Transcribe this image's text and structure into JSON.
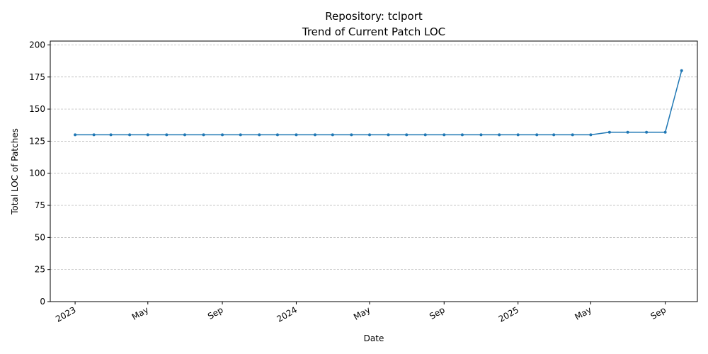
{
  "chart_data": {
    "type": "line",
    "title": "Repository: tclport",
    "subtitle": "Trend of Current Patch LOC",
    "xlabel": "Date",
    "ylabel": "Total LOC of Patches",
    "ylim": [
      0,
      203
    ],
    "xlim": [
      "2022-11-21",
      "2025-10-24"
    ],
    "yticks": [
      0,
      25,
      50,
      75,
      100,
      125,
      150,
      175,
      200
    ],
    "xticks": [
      {
        "date": "2023-01-01",
        "label": "2023"
      },
      {
        "date": "2023-05-01",
        "label": "May"
      },
      {
        "date": "2023-09-01",
        "label": "Sep"
      },
      {
        "date": "2024-01-01",
        "label": "2024"
      },
      {
        "date": "2024-05-01",
        "label": "May"
      },
      {
        "date": "2024-09-01",
        "label": "Sep"
      },
      {
        "date": "2025-01-01",
        "label": "2025"
      },
      {
        "date": "2025-05-01",
        "label": "May"
      },
      {
        "date": "2025-09-01",
        "label": "Sep"
      }
    ],
    "grid": "y-dashed",
    "color": "#1f77b4",
    "series": [
      {
        "x": [
          "2023-01-01",
          "2023-02-01",
          "2023-03-01",
          "2023-04-01",
          "2023-05-01",
          "2023-06-01",
          "2023-07-01",
          "2023-08-01",
          "2023-09-01",
          "2023-10-01",
          "2023-11-01",
          "2023-12-01",
          "2024-01-01",
          "2024-02-01",
          "2024-03-01",
          "2024-04-01",
          "2024-05-01",
          "2024-06-01",
          "2024-07-01",
          "2024-08-01",
          "2024-09-01",
          "2024-10-01",
          "2024-11-01",
          "2024-12-01",
          "2025-01-01",
          "2025-02-01",
          "2025-03-01",
          "2025-04-01",
          "2025-05-01",
          "2025-06-01",
          "2025-07-01",
          "2025-08-01",
          "2025-09-01",
          "2025-09-28"
        ],
        "values": [
          130,
          130,
          130,
          130,
          130,
          130,
          130,
          130,
          130,
          130,
          130,
          130,
          130,
          130,
          130,
          130,
          130,
          130,
          130,
          130,
          130,
          130,
          130,
          130,
          130,
          130,
          130,
          130,
          130,
          132,
          132,
          132,
          132,
          180
        ]
      }
    ]
  }
}
